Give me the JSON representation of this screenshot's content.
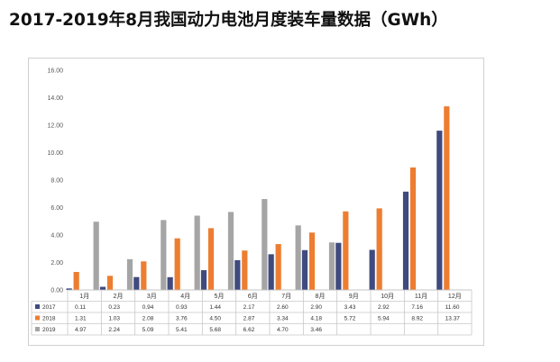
{
  "title": "2017-2019年8月我国动力电池月度装车量数据（GWh）",
  "chart_data": {
    "type": "bar",
    "title": "",
    "xlabel": "",
    "ylabel": "",
    "ylim": [
      0,
      16
    ],
    "yticks": [
      "0.00",
      "2.00",
      "4.00",
      "6.00",
      "8.00",
      "10.00",
      "12.00",
      "14.00",
      "16.00"
    ],
    "grid": false,
    "legend": "data-table",
    "categories": [
      "1月",
      "2月",
      "3月",
      "4月",
      "5月",
      "6月",
      "7月",
      "8月",
      "9月",
      "10月",
      "11月",
      "12月"
    ],
    "series": [
      {
        "name": "2017",
        "color": "#3f4a7e",
        "values": [
          0.11,
          0.23,
          0.94,
          0.93,
          1.44,
          2.17,
          2.6,
          2.9,
          3.43,
          2.92,
          7.16,
          11.6
        ],
        "labels": [
          "0.11",
          "0.23",
          "0.94",
          "0.93",
          "1.44",
          "2.17",
          "2.60",
          "2.90",
          "3.43",
          "2.92",
          "7.16",
          "11.60"
        ]
      },
      {
        "name": "2018",
        "color": "#ed7d31",
        "values": [
          1.31,
          1.03,
          2.08,
          3.76,
          4.5,
          2.87,
          3.34,
          4.18,
          5.72,
          5.94,
          8.92,
          13.37
        ],
        "labels": [
          "1.31",
          "1.03",
          "2.08",
          "3.76",
          "4.50",
          "2.87",
          "3.34",
          "4.18",
          "5.72",
          "5.94",
          "8.92",
          "13.37"
        ]
      },
      {
        "name": "2019",
        "color": "#a5a5a5",
        "values": [
          4.97,
          2.24,
          5.09,
          5.41,
          5.68,
          6.62,
          4.7,
          3.46,
          null,
          null,
          null,
          null
        ],
        "labels": [
          "4.97",
          "2.24",
          "5.09",
          "5.41",
          "5.68",
          "6.62",
          "4.70",
          "3.46",
          "",
          "",
          "",
          ""
        ]
      }
    ]
  }
}
